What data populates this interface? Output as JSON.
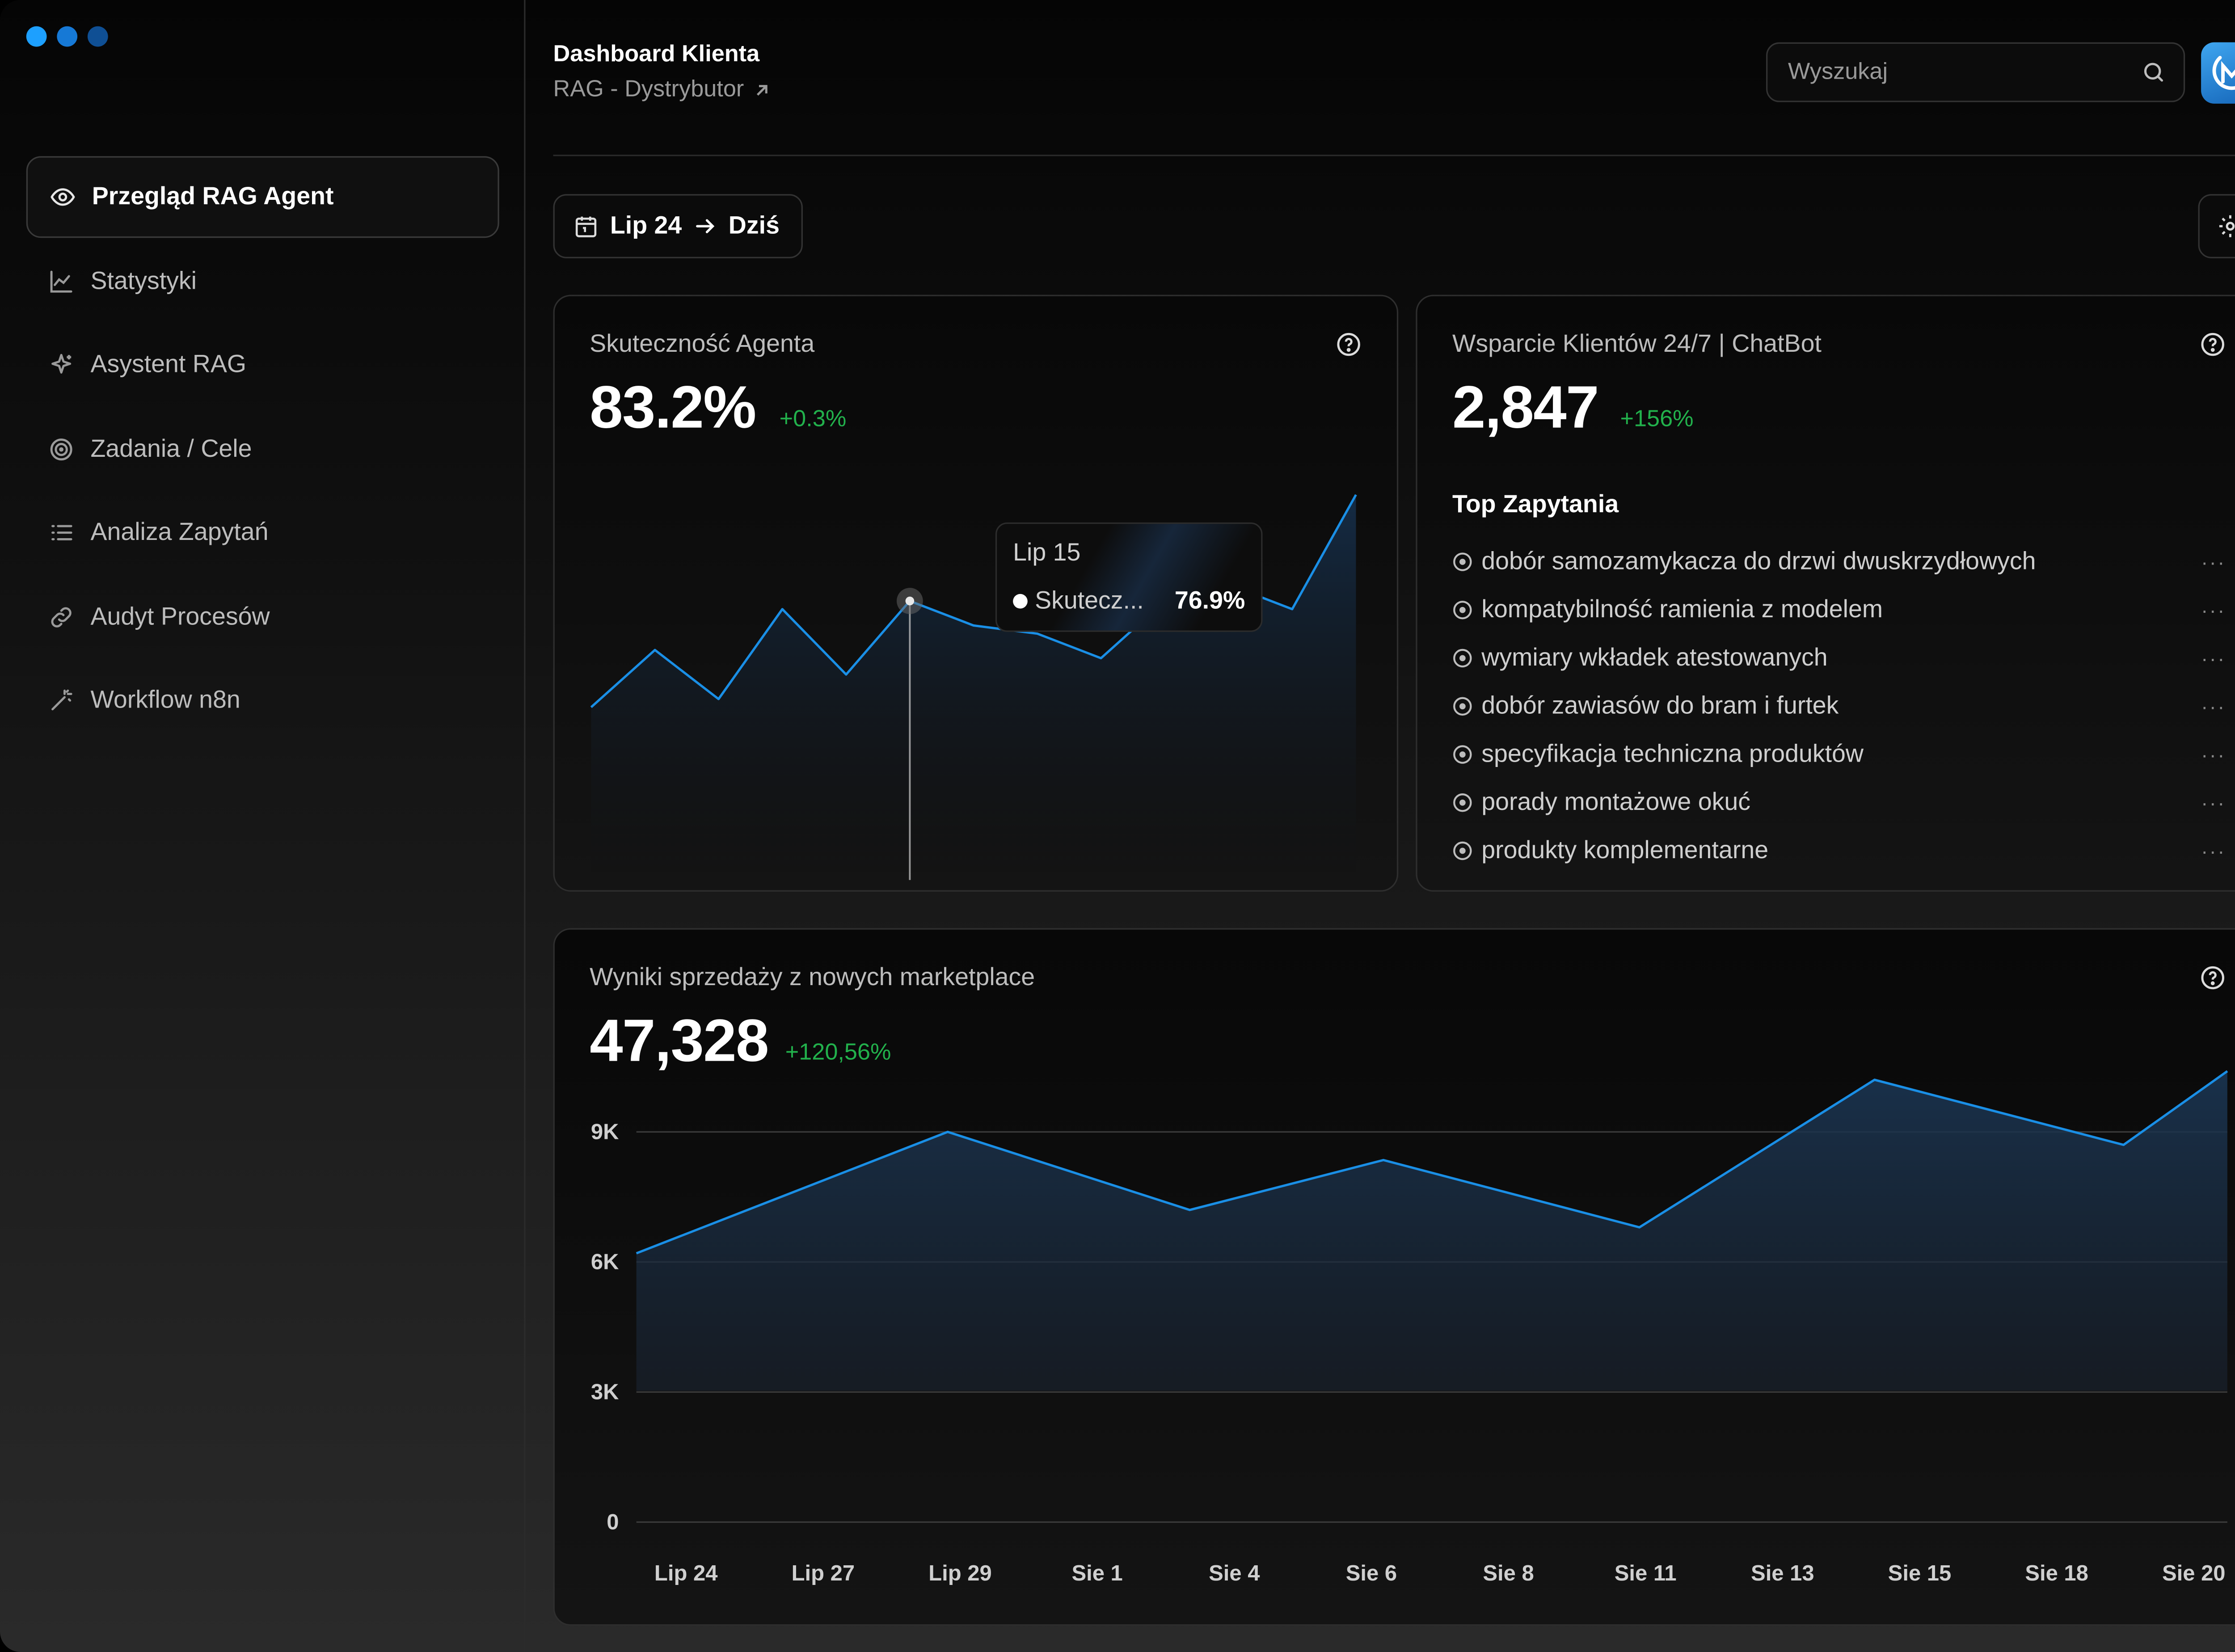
{
  "window": {
    "dots": [
      "#1da0ff",
      "#1679d6",
      "#0f4f94"
    ]
  },
  "sidebar": {
    "items": [
      {
        "label": "Przegląd RAG Agent",
        "icon": "eye-icon",
        "active": true
      },
      {
        "label": "Statystyki",
        "icon": "line-chart-icon"
      },
      {
        "label": "Asystent RAG",
        "icon": "sparkle-icon"
      },
      {
        "label": "Zadania / Cele",
        "icon": "target-icon"
      },
      {
        "label": "Analiza Zapytań",
        "icon": "list-icon"
      },
      {
        "label": "Audyt Procesów",
        "icon": "link-icon"
      },
      {
        "label": "Workflow n8n",
        "icon": "magic-wand-icon"
      }
    ]
  },
  "header": {
    "title": "Dashboard Klienta",
    "subtitle": "RAG - Dystrybutor",
    "search_placeholder": "Wyszukaj"
  },
  "date_range": {
    "from": "Lip 24",
    "to": "Dziś"
  },
  "agent_card": {
    "title": "Skuteczność Agenta",
    "value": "83.2%",
    "delta": "+0.3%",
    "tooltip": {
      "date": "Lip 15",
      "series": "Skutecz...",
      "value": "76.9%"
    }
  },
  "support_card": {
    "title": "Wsparcie Klientów 24/7 | ChatBot",
    "value": "2,847",
    "delta": "+156%",
    "list_title": "Top Zapytania",
    "queries": [
      "dobór samozamykacza do drzwi dwuskrzydłowych",
      "kompatybilność ramienia z modelem",
      "wymiary wkładek atestowanych",
      "dobór zawiasów do bram i furtek",
      "specyfikacja techniczna produktów",
      "porady montażowe okuć",
      "produkty komplementarne"
    ],
    "more_label": "···"
  },
  "sales_card": {
    "title": "Wyniki sprzedaży z nowych marketplace",
    "value": "47,328",
    "delta": "+120,56%"
  },
  "chart_data": [
    {
      "type": "area",
      "title": "Skuteczność Agenta",
      "values": [
        64,
        71,
        65,
        76,
        68,
        77,
        74,
        73,
        70,
        77,
        79,
        76,
        90
      ],
      "highlight_index": 5,
      "color": "#1a8fe6"
    },
    {
      "type": "area",
      "title": "Wyniki sprzedaży z nowych marketplace",
      "categories": [
        "Lip 24",
        "Lip 27",
        "Lip 29",
        "Sie 1",
        "Sie 4",
        "Sie 6",
        "Sie 8",
        "Sie 11",
        "Sie 13",
        "Sie 15",
        "Sie 18",
        "Sie 20"
      ],
      "x": [
        0,
        2,
        4,
        6,
        8,
        10,
        12,
        14,
        16,
        18,
        20,
        22
      ],
      "points": [
        [
          0,
          6200
        ],
        [
          4.5,
          9000
        ],
        [
          8,
          7200
        ],
        [
          10.8,
          8350
        ],
        [
          14.5,
          6800
        ],
        [
          17.9,
          10200
        ],
        [
          21.5,
          8700
        ],
        [
          23,
          10400
        ]
      ],
      "yticks": [
        0,
        3000,
        6000,
        9000
      ],
      "ytick_labels": [
        "0",
        "3K",
        "6K",
        "9K"
      ],
      "ylim": [
        0,
        10400
      ],
      "xlim": [
        0,
        23
      ],
      "grid": true,
      "color": "#1a8fe6"
    }
  ]
}
